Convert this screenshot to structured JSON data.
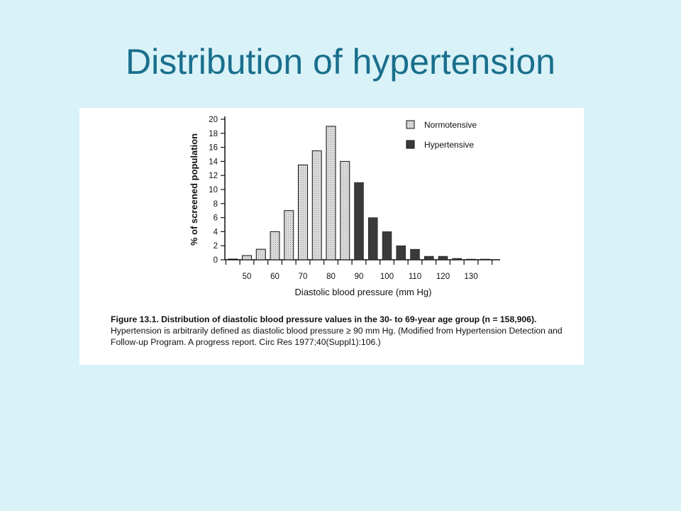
{
  "slide": {
    "title": "Distribution of hypertension"
  },
  "colors": {
    "background": "#d9f2f8",
    "title": "#1a6f8c",
    "normotensive": "#e4e4e4",
    "hypertensive": "#3a3a3a"
  },
  "chart_data": {
    "type": "bar",
    "title": "",
    "xlabel": "Diastolic blood pressure (mm Hg)",
    "ylabel": "% of screened population",
    "ylim": [
      0,
      20
    ],
    "yticks": [
      0,
      2,
      4,
      6,
      8,
      10,
      12,
      14,
      16,
      18,
      20
    ],
    "xticks": [
      "50",
      "60",
      "70",
      "80",
      "90",
      "100",
      "110",
      "120",
      "130"
    ],
    "categories": [
      "45",
      "50",
      "55",
      "60",
      "65",
      "70",
      "75",
      "80",
      "85",
      "90",
      "95",
      "100",
      "105",
      "110",
      "115",
      "120",
      "125",
      "130",
      "135"
    ],
    "series": [
      {
        "name": "Normotensive",
        "values": [
          0.1,
          0.6,
          1.5,
          4.0,
          7.0,
          13.5,
          15.5,
          19.0,
          14.0,
          null,
          null,
          null,
          null,
          null,
          null,
          null,
          null,
          null,
          null
        ]
      },
      {
        "name": "Hypertensive",
        "values": [
          null,
          null,
          null,
          null,
          null,
          null,
          null,
          null,
          null,
          11.0,
          6.0,
          4.0,
          2.0,
          1.5,
          0.5,
          0.5,
          0.2,
          0.1,
          0.1
        ]
      }
    ],
    "legend": {
      "position": "top-right"
    },
    "grid": false
  },
  "caption": {
    "label": "Figure 13.1.",
    "bold_text": "Distribution of diastolic blood pressure values in the 30- to 69-year age group (n = 158,906).",
    "text": "Hypertension is arbitrarily defined as diastolic blood pressure ≥ 90 mm Hg. (Modified from Hypertension Detection and Follow-up Program. A progress report. Circ Res 1977;40(Suppl1):106.)"
  }
}
